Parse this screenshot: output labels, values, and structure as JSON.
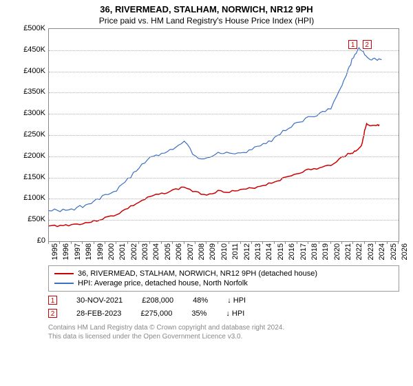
{
  "title": "36, RIVERMEAD, STALHAM, NORWICH, NR12 9PH",
  "subtitle": "Price paid vs. HM Land Registry's House Price Index (HPI)",
  "chart": {
    "type": "line",
    "xlim": [
      1995,
      2026
    ],
    "ylim": [
      0,
      500000
    ],
    "ytick_step": 50000,
    "y_tick_labels": [
      "£0",
      "£50K",
      "£100K",
      "£150K",
      "£200K",
      "£250K",
      "£300K",
      "£350K",
      "£400K",
      "£450K",
      "£500K"
    ],
    "x_ticks": [
      1995,
      1996,
      1997,
      1998,
      1999,
      2000,
      2001,
      2002,
      2003,
      2004,
      2005,
      2006,
      2007,
      2008,
      2009,
      2010,
      2011,
      2012,
      2013,
      2014,
      2015,
      2016,
      2017,
      2018,
      2019,
      2020,
      2021,
      2022,
      2023,
      2024,
      2025,
      2026
    ],
    "grid_color": "#b0b0b0",
    "border_color": "#888888",
    "background_color": "#ffffff",
    "series": [
      {
        "name": "property",
        "label": "36, RIVERMEAD, STALHAM, NORWICH, NR12 9PH (detached house)",
        "color": "#cc0000",
        "width": 1.5,
        "x": [
          1995,
          1996,
          1997,
          1998,
          1999,
          2000,
          2001,
          2002,
          2003,
          2004,
          2005,
          2006,
          2007,
          2008,
          2009,
          2010,
          2011,
          2012,
          2013,
          2014,
          2015,
          2016,
          2017,
          2018,
          2019,
          2020,
          2021,
          2021.5,
          2021.92,
          2022.3,
          2022.7,
          2023,
          2023.17,
          2023.5,
          2024,
          2024.3
        ],
        "y": [
          36000,
          37000,
          39000,
          42000,
          47000,
          55000,
          63000,
          78000,
          92000,
          105000,
          112000,
          120000,
          128000,
          115000,
          110000,
          118000,
          117000,
          120000,
          125000,
          132000,
          140000,
          150000,
          160000,
          168000,
          172000,
          180000,
          198000,
          205000,
          208000,
          215000,
          225000,
          260000,
          275000,
          270000,
          272000,
          273000
        ]
      },
      {
        "name": "hpi",
        "label": "HPI: Average price, detached house, North Norfolk",
        "color": "#3b6fc4",
        "width": 1.2,
        "x": [
          1995,
          1996,
          1997,
          1998,
          1999,
          2000,
          2001,
          2002,
          2003,
          2004,
          2005,
          2006,
          2007,
          2008,
          2009,
          2010,
          2011,
          2012,
          2013,
          2014,
          2015,
          2016,
          2017,
          2018,
          2019,
          2020,
          2021,
          2021.5,
          2022,
          2022.5,
          2023,
          2023.5,
          2024,
          2024.5
        ],
        "y": [
          72000,
          73000,
          76000,
          82000,
          92000,
          108000,
          120000,
          145000,
          175000,
          198000,
          205000,
          220000,
          235000,
          200000,
          195000,
          210000,
          205000,
          208000,
          215000,
          228000,
          242000,
          262000,
          278000,
          290000,
          298000,
          315000,
          370000,
          400000,
          435000,
          452000,
          440000,
          430000,
          428000,
          425000
        ]
      }
    ],
    "markers": [
      {
        "id": "1",
        "x": 2021.92,
        "y": 465000,
        "color": "#cc0000"
      },
      {
        "id": "2",
        "x": 2023.17,
        "y": 465000,
        "color": "#cc0000"
      }
    ]
  },
  "sales": [
    {
      "id": "1",
      "color": "#cc0000",
      "date": "30-NOV-2021",
      "price": "£208,000",
      "pct": "48%",
      "vs": "↓ HPI"
    },
    {
      "id": "2",
      "color": "#cc0000",
      "date": "28-FEB-2023",
      "price": "£275,000",
      "pct": "35%",
      "vs": "↓ HPI"
    }
  ],
  "footnote_l1": "Contains HM Land Registry data © Crown copyright and database right 2024.",
  "footnote_l2": "This data is licensed under the Open Government Licence v3.0."
}
